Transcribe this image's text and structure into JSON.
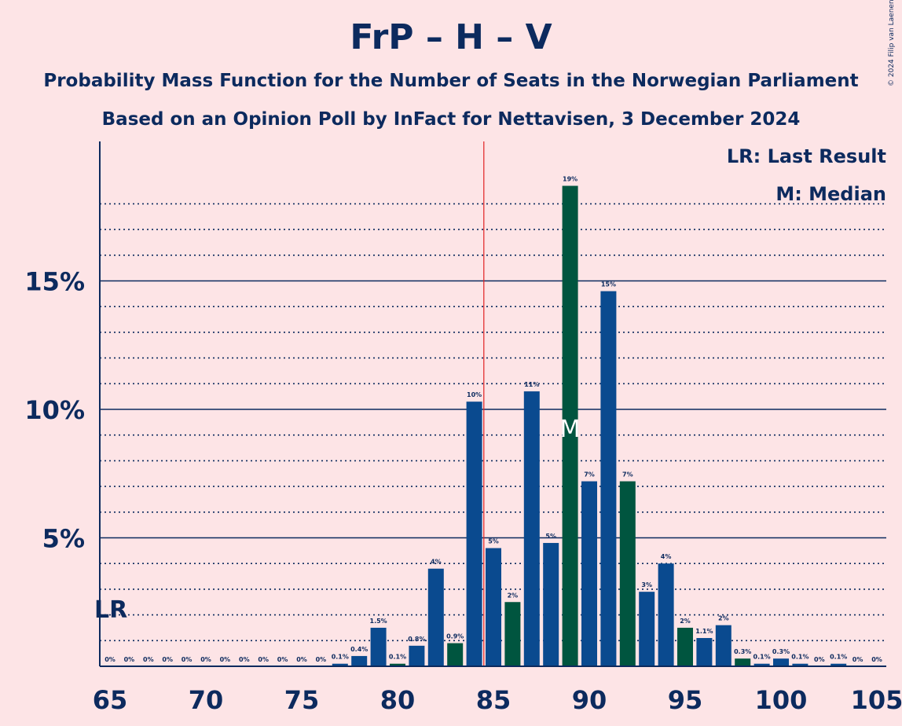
{
  "header": {
    "title": "FrP – H – V",
    "subtitle1": "Probability Mass Function for the Number of Seats in the Norwegian Parliament",
    "subtitle2": "Based on an Opinion Poll by InFact for Nettavisen, 3 December 2024",
    "copyright": "© 2024 Filip van Laenen"
  },
  "legend": {
    "last_result": "LR: Last Result",
    "median": "M: Median"
  },
  "colors": {
    "background": "#fde4e6",
    "text": "#0c2a5e",
    "bar_blue": "#0a4a8f",
    "bar_green": "#00553f",
    "median_line": "#e02020"
  },
  "chart_data": {
    "type": "bar",
    "title": "FrP – H – V",
    "xlabel": "",
    "ylabel": "",
    "x": [
      65,
      66,
      67,
      68,
      69,
      70,
      71,
      72,
      73,
      74,
      75,
      76,
      77,
      78,
      79,
      80,
      81,
      82,
      83,
      84,
      85,
      86,
      87,
      88,
      89,
      90,
      91,
      92,
      93,
      94,
      95,
      96,
      97,
      98,
      99,
      100,
      101,
      102,
      103,
      104,
      105
    ],
    "values": [
      0,
      0,
      0,
      0,
      0,
      0,
      0,
      0,
      0,
      0,
      0,
      0,
      0.1,
      0.4,
      1.5,
      0.1,
      0.8,
      3.8,
      0.9,
      10.3,
      4.6,
      2.5,
      10.7,
      4.8,
      18.7,
      7.2,
      14.6,
      7.2,
      2.9,
      4.0,
      1.5,
      1.1,
      1.6,
      0.3,
      0.1,
      0.3,
      0.1,
      0,
      0.1,
      0,
      0
    ],
    "labels": [
      "0%",
      "0%",
      "0%",
      "0%",
      "0%",
      "0%",
      "0%",
      "0%",
      "0%",
      "0%",
      "0%",
      "0%",
      "0.1%",
      "0.4%",
      "1.5%",
      "0.1%",
      "0.8%",
      "4%",
      "0.9%",
      "10%",
      "5%",
      "2%",
      "11%",
      "5%",
      "19%",
      "7%",
      "15%",
      "7%",
      "3%",
      "4%",
      "2%",
      "1.1%",
      "2%",
      "0.3%",
      "0.1%",
      "0.3%",
      "0.1%",
      "0%",
      "0.1%",
      "0%",
      "0%"
    ],
    "bar_colors": [
      "blue",
      "blue",
      "blue",
      "blue",
      "blue",
      "blue",
      "blue",
      "blue",
      "blue",
      "blue",
      "blue",
      "blue",
      "blue",
      "blue",
      "blue",
      "green",
      "blue",
      "blue",
      "green",
      "blue",
      "blue",
      "green",
      "blue",
      "blue",
      "green",
      "blue",
      "blue",
      "green",
      "blue",
      "blue",
      "green",
      "blue",
      "blue",
      "green",
      "blue",
      "blue",
      "blue",
      "blue",
      "blue",
      "blue",
      "blue"
    ],
    "x_ticks": [
      65,
      70,
      75,
      80,
      85,
      90,
      95,
      100,
      105
    ],
    "y_ticks": [
      5,
      10,
      15
    ],
    "y_tick_labels": [
      "5%",
      "10%",
      "15%"
    ],
    "ylim": [
      0,
      20
    ],
    "xlim": [
      64.5,
      105.5
    ],
    "last_result_seat": 65,
    "last_result_label": "LR",
    "median_seat": 89,
    "median_label": "M",
    "majority_line_x": 84.5,
    "grid": true
  }
}
